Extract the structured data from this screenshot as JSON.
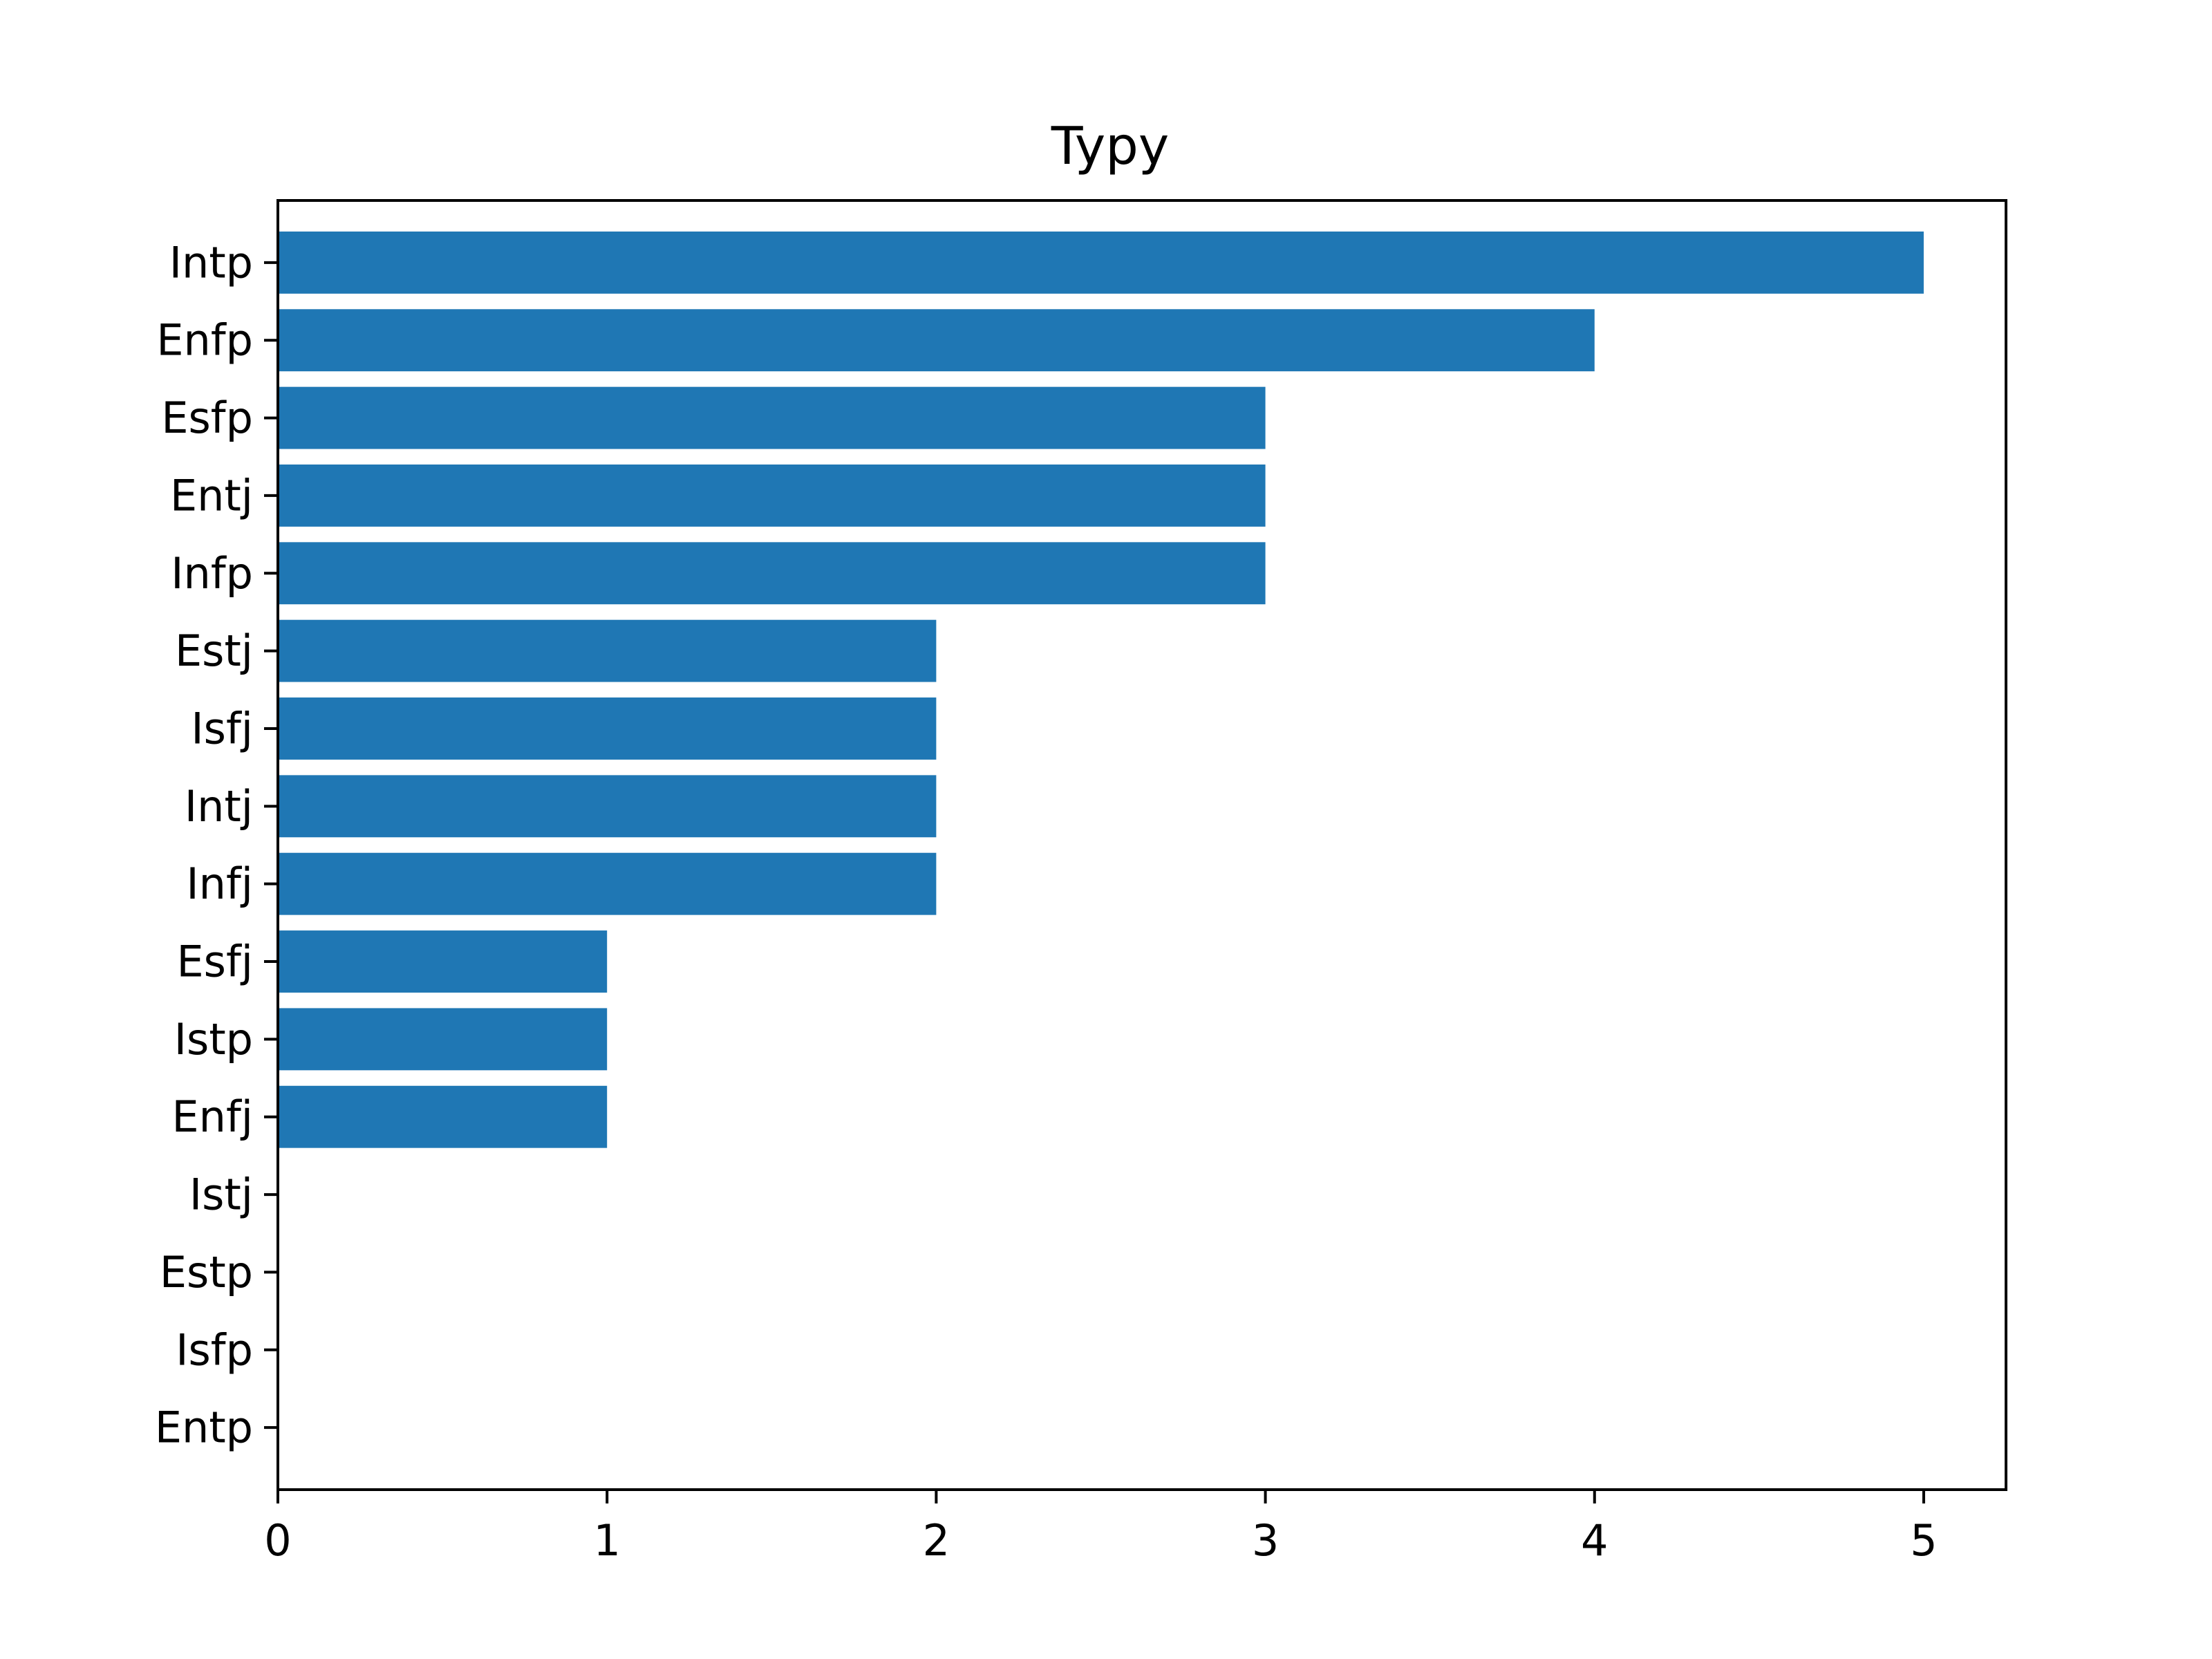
{
  "chart_data": {
    "type": "bar",
    "orientation": "horizontal",
    "title": "Typy",
    "xlabel": "",
    "ylabel": "",
    "categories": [
      "Intp",
      "Enfp",
      "Esfp",
      "Entj",
      "Infp",
      "Estj",
      "Isfj",
      "Intj",
      "Infj",
      "Esfj",
      "Istp",
      "Enfj",
      "Istj",
      "Estp",
      "Isfp",
      "Entp"
    ],
    "values": [
      5,
      4,
      3,
      3,
      3,
      2,
      2,
      2,
      2,
      1,
      1,
      1,
      0,
      0,
      0,
      0
    ],
    "xlim": [
      0,
      5.25
    ],
    "xticks": [
      "0",
      "1",
      "2",
      "3",
      "4",
      "5"
    ],
    "grid": false,
    "bar_color": "#1f77b4"
  }
}
